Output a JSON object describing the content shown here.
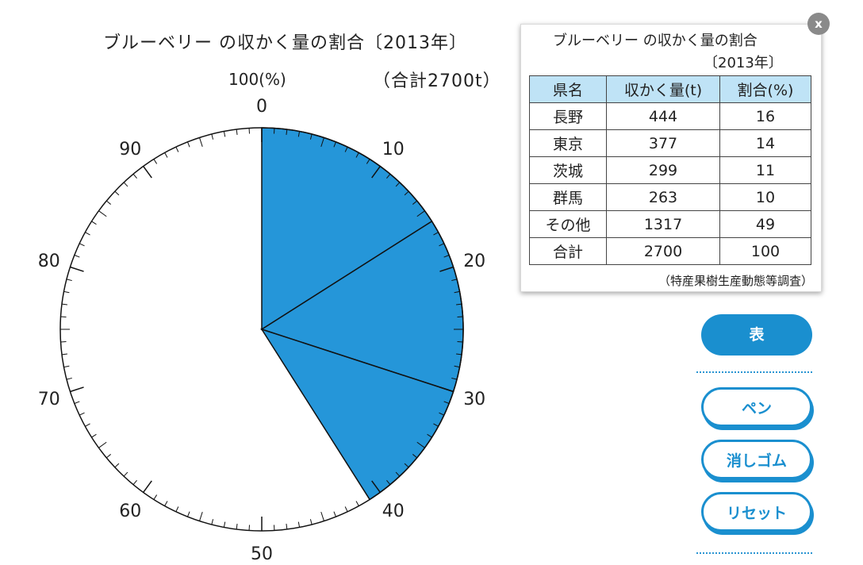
{
  "chart_title": "ブルーベリー の収かく量の割合〔2013年〕",
  "chart_total": "（合計2700t）",
  "unit_label": "100(%)",
  "colors": {
    "fill": "#2596d9",
    "accent": "#1a8fcf"
  },
  "chart_data": {
    "type": "pie",
    "scale_max": 100,
    "ticks_major": [
      "0",
      "10",
      "20",
      "30",
      "40",
      "50",
      "60",
      "70",
      "80",
      "90"
    ],
    "filled_segments": [
      16,
      14,
      11
    ],
    "filled_color": "#2596d9"
  },
  "table": {
    "title_line1": "ブルーベリー の収かく量の割合",
    "title_line2": "〔2013年〕",
    "headers": [
      "県名",
      "収かく量(t)",
      "割合(%)"
    ],
    "rows": [
      [
        "長野",
        "444",
        "16"
      ],
      [
        "東京",
        "377",
        "14"
      ],
      [
        "茨城",
        "299",
        "11"
      ],
      [
        "群馬",
        "263",
        "10"
      ],
      [
        "その他",
        "1317",
        "49"
      ],
      [
        "合計",
        "2700",
        "100"
      ]
    ],
    "source": "（特産果樹生産動態等調査）"
  },
  "close_label": "x",
  "buttons": {
    "table": "表",
    "pen": "ペン",
    "eraser": "消しゴム",
    "reset": "リセット"
  }
}
